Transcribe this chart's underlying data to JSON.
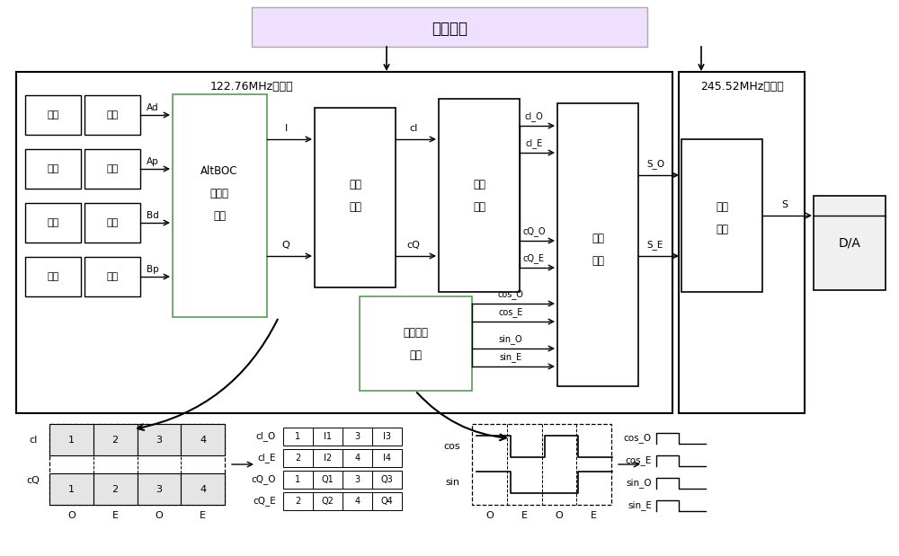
{
  "title": "时钟生成",
  "clock_domain1": "122.76MHz时钟域",
  "clock_domain2": "245.52MHz时钟域",
  "bg_color": "#ffffff",
  "fig_width": 10.0,
  "fig_height": 6.19,
  "dpi": 100
}
